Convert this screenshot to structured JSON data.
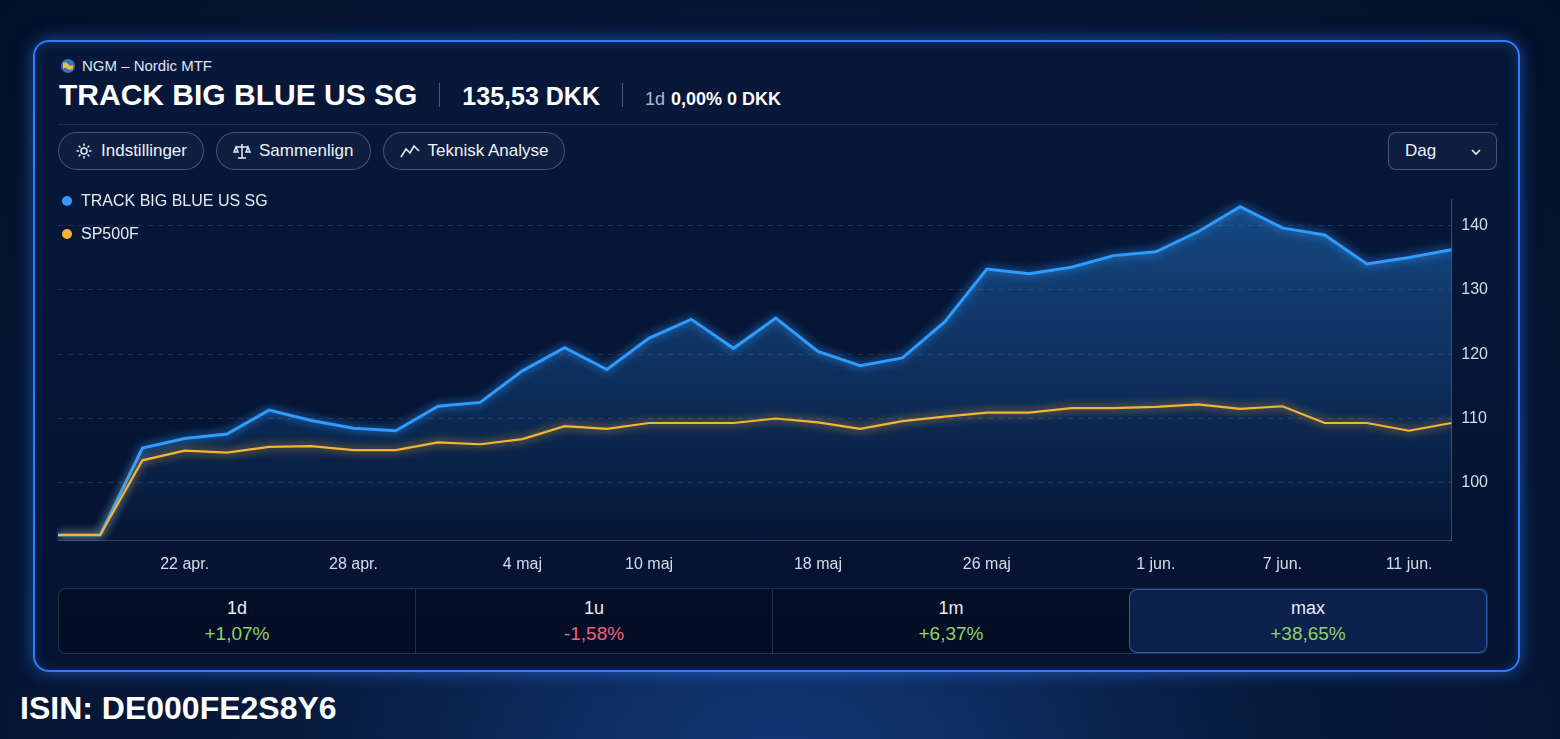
{
  "header": {
    "exchange": "NGM – Nordic MTF",
    "title": "TRACK BIG BLUE US SG",
    "price": "135,53 DKK",
    "change_period": "1d",
    "change_percent": "0,00%",
    "change_amount": "0 DKK"
  },
  "toolbar": {
    "buttons": [
      "Indstillinger",
      "Sammenlign",
      "Teknisk Analyse"
    ],
    "interval": "Dag"
  },
  "chart_data": {
    "type": "line",
    "categories": [
      null,
      null,
      null,
      "22 apr.",
      null,
      null,
      null,
      "28 apr.",
      null,
      null,
      null,
      "4 maj",
      null,
      null,
      "10 maj",
      null,
      null,
      null,
      "18 maj",
      null,
      null,
      null,
      "26 maj",
      null,
      null,
      null,
      "1 jun.",
      null,
      null,
      "7 jun.",
      null,
      null,
      "11 jun.",
      null
    ],
    "series": [
      {
        "name": "TRACK BIG BLUE US SG",
        "color": "#2f9bff",
        "type": "area",
        "values": [
          91.9,
          91.9,
          105.4,
          106.9,
          107.6,
          111.3,
          109.7,
          108.5,
          108.1,
          111.9,
          112.5,
          117.4,
          121.0,
          117.6,
          122.5,
          125.4,
          120.9,
          125.6,
          120.4,
          118.2,
          119.4,
          125.0,
          133.2,
          132.5,
          133.5,
          135.3,
          135.9,
          139.0,
          142.9,
          139.6,
          138.5,
          134.0,
          135.0,
          136.2
        ]
      },
      {
        "name": "SP500F",
        "color": "#f5b335",
        "type": "line",
        "values": [
          91.9,
          91.9,
          103.5,
          105.0,
          104.7,
          105.6,
          105.7,
          105.1,
          105.1,
          106.3,
          106.0,
          106.8,
          108.8,
          108.4,
          109.3,
          109.3,
          109.3,
          110.0,
          109.4,
          108.4,
          109.6,
          110.3,
          110.9,
          110.9,
          111.6,
          111.6,
          111.8,
          112.2,
          111.5,
          111.9,
          109.3,
          109.3,
          108.1,
          109.3
        ]
      }
    ],
    "ylim": [
      91,
      144
    ],
    "yticks": [
      100,
      110,
      120,
      130,
      140
    ],
    "grid": true,
    "legend": "top-left"
  },
  "stats": [
    {
      "label": "1d",
      "value": "+1,07%"
    },
    {
      "label": "1u",
      "value": "-1,58%"
    },
    {
      "label": "1m",
      "value": "+6,37%"
    },
    {
      "label": "max",
      "value": "+38,65%"
    }
  ],
  "footer": {
    "isin": "ISIN: DE000FE2S8Y6"
  }
}
